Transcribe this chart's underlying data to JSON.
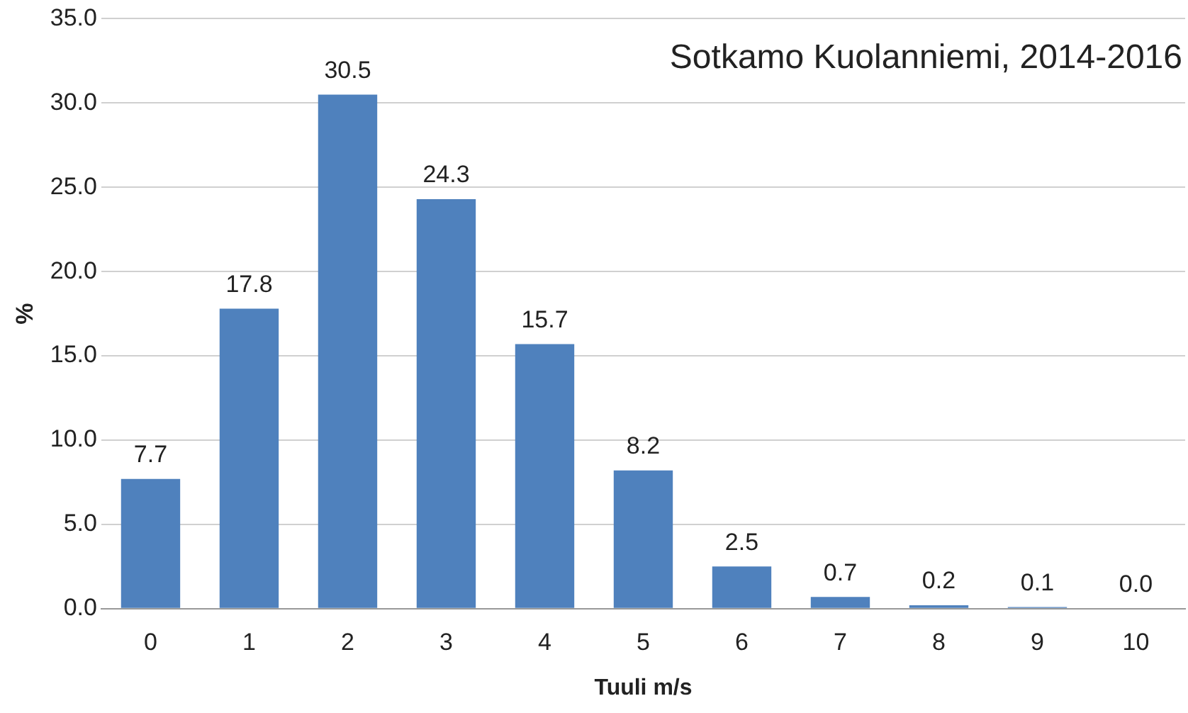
{
  "chart_data": {
    "type": "bar",
    "title": "Sotkamo Kuolanniemi, 2014-2016",
    "xlabel": "Tuuli m/s",
    "ylabel": "%",
    "categories": [
      "0",
      "1",
      "2",
      "3",
      "4",
      "5",
      "6",
      "7",
      "8",
      "9",
      "10"
    ],
    "values": [
      7.7,
      17.8,
      30.5,
      24.3,
      15.7,
      8.2,
      2.5,
      0.7,
      0.2,
      0.1,
      0.0
    ],
    "value_labels": [
      "7.7",
      "17.8",
      "30.5",
      "24.3",
      "15.7",
      "8.2",
      "2.5",
      "0.7",
      "0.2",
      "0.1",
      "0.0"
    ],
    "color": "#4f81bd",
    "ylim": [
      0,
      35
    ],
    "yticks": [
      {
        "value": 0,
        "label": "0.0"
      },
      {
        "value": 5,
        "label": "5.0"
      },
      {
        "value": 10,
        "label": "10.0"
      },
      {
        "value": 15,
        "label": "15.0"
      },
      {
        "value": 20,
        "label": "20.0"
      },
      {
        "value": 25,
        "label": "25.0"
      },
      {
        "value": 30,
        "label": "30.0"
      },
      {
        "value": 35,
        "label": "35.0"
      }
    ],
    "grid": "y"
  }
}
